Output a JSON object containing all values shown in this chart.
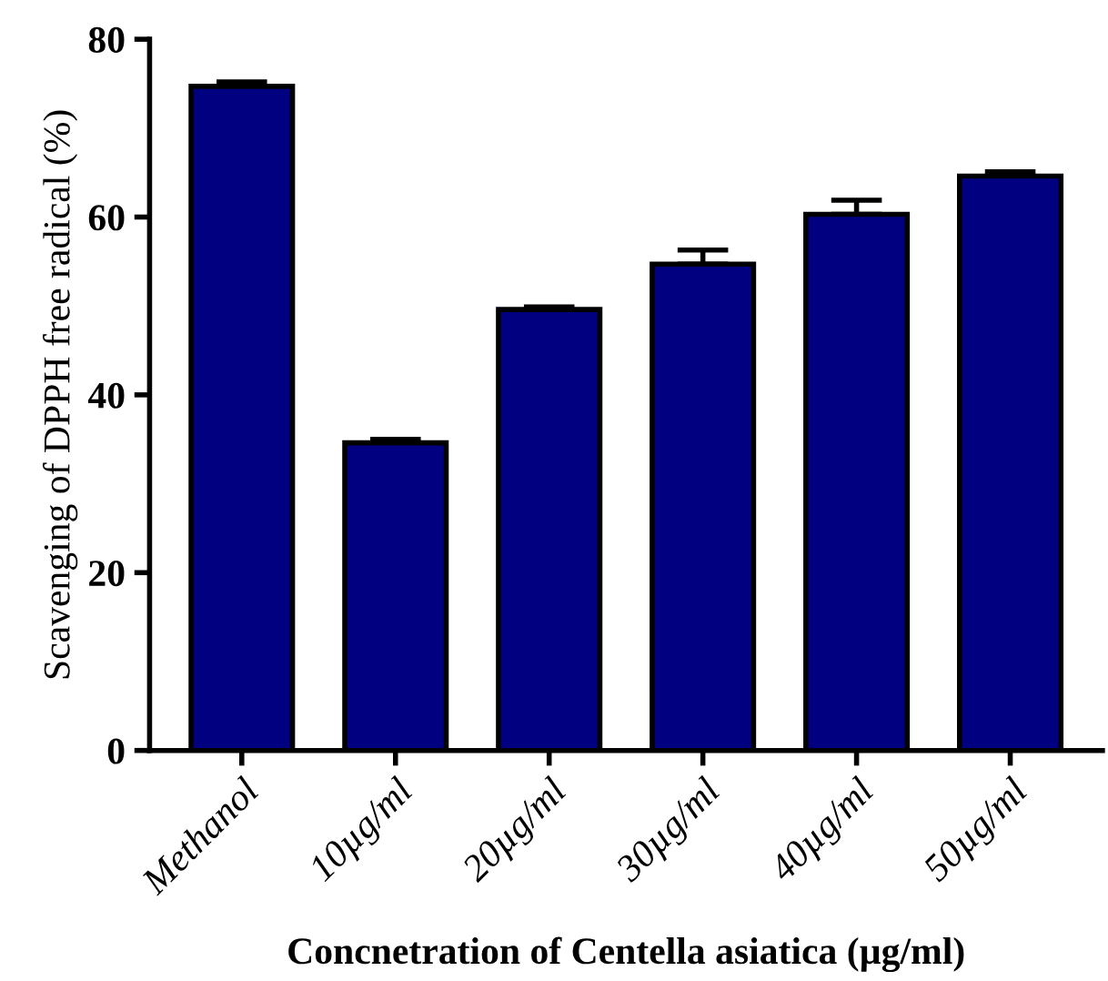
{
  "chart_data": {
    "type": "bar",
    "xlabel": "Concnetration of Centella asiatica (µg/ml)",
    "ylabel": "Scavenging of DPPH free radical (%)",
    "categories": [
      "Methanol",
      "10µg/ml",
      "20µg/ml",
      "30µg/ml",
      "40µg/ml",
      "50µg/ml"
    ],
    "values": [
      74.7,
      34.6,
      49.6,
      54.7,
      60.3,
      64.6
    ],
    "errors": [
      0.5,
      0.4,
      0.3,
      1.6,
      1.6,
      0.5
    ],
    "color": "#000080",
    "ylim": [
      0,
      80
    ],
    "yticks": [
      0,
      20,
      40,
      60,
      80
    ],
    "grid": false,
    "legend": false
  }
}
